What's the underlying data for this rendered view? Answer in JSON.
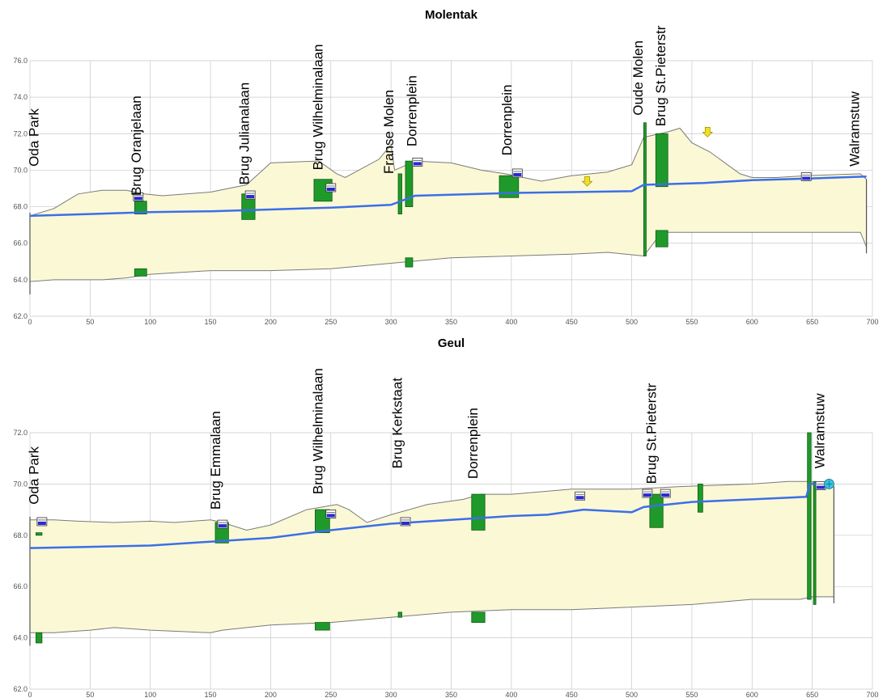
{
  "colors": {
    "fill": "#fbf8d6",
    "outline": "#7a7a7a",
    "grid": "#c8c8c8",
    "water": "#3b6fe8",
    "structure": "#1f9a2a",
    "structure_edge": "#0d5a14",
    "marker_yellow": "#f0e020",
    "culvert": "#2a2ad0"
  },
  "chart_data": [
    {
      "type": "area",
      "title": "Molentak",
      "xlim": [
        0,
        700
      ],
      "ylim": [
        62,
        76
      ],
      "x_ticks": [
        0,
        50,
        100,
        150,
        200,
        250,
        300,
        350,
        400,
        450,
        500,
        550,
        600,
        650,
        700
      ],
      "y_ticks": [
        62,
        64,
        66,
        68,
        70,
        72,
        74,
        76
      ],
      "y_tick_labels": [
        "62.0",
        "64.0",
        "66.0",
        "68.0",
        "70.0",
        "72.0",
        "74.0",
        "76.0"
      ],
      "ground_top": [
        [
          0,
          67.5
        ],
        [
          20,
          67.9
        ],
        [
          40,
          68.7
        ],
        [
          60,
          68.9
        ],
        [
          80,
          68.9
        ],
        [
          95,
          68.7
        ],
        [
          110,
          68.6
        ],
        [
          150,
          68.8
        ],
        [
          180,
          69.2
        ],
        [
          200,
          70.4
        ],
        [
          240,
          70.5
        ],
        [
          255,
          69.8
        ],
        [
          262,
          69.6
        ],
        [
          290,
          70.6
        ],
        [
          300,
          71.4
        ],
        [
          303,
          70.0
        ],
        [
          310,
          70.2
        ],
        [
          320,
          70.5
        ],
        [
          350,
          70.4
        ],
        [
          375,
          70.0
        ],
        [
          395,
          69.8
        ],
        [
          410,
          69.6
        ],
        [
          425,
          69.4
        ],
        [
          450,
          69.7
        ],
        [
          480,
          69.9
        ],
        [
          500,
          70.3
        ],
        [
          510,
          71.8
        ],
        [
          530,
          72.1
        ],
        [
          540,
          72.3
        ],
        [
          550,
          71.5
        ],
        [
          565,
          71.0
        ],
        [
          590,
          69.8
        ],
        [
          600,
          69.6
        ],
        [
          620,
          69.6
        ],
        [
          645,
          69.7
        ],
        [
          690,
          69.8
        ],
        [
          695,
          69.5
        ]
      ],
      "bed_bottom": [
        [
          0,
          63.9
        ],
        [
          20,
          64.0
        ],
        [
          40,
          64.0
        ],
        [
          60,
          64.0
        ],
        [
          80,
          64.1
        ],
        [
          100,
          64.3
        ],
        [
          150,
          64.5
        ],
        [
          200,
          64.5
        ],
        [
          250,
          64.6
        ],
        [
          300,
          64.9
        ],
        [
          350,
          65.2
        ],
        [
          400,
          65.3
        ],
        [
          450,
          65.4
        ],
        [
          480,
          65.5
        ],
        [
          510,
          65.3
        ],
        [
          525,
          66.6
        ],
        [
          545,
          66.6
        ],
        [
          600,
          66.6
        ],
        [
          650,
          66.6
        ],
        [
          690,
          66.6
        ],
        [
          695,
          65.8
        ]
      ],
      "water_level": [
        [
          0,
          67.5
        ],
        [
          50,
          67.6
        ],
        [
          100,
          67.7
        ],
        [
          150,
          67.75
        ],
        [
          200,
          67.85
        ],
        [
          250,
          67.95
        ],
        [
          300,
          68.1
        ],
        [
          320,
          68.6
        ],
        [
          400,
          68.75
        ],
        [
          450,
          68.8
        ],
        [
          500,
          68.85
        ],
        [
          510,
          69.2
        ],
        [
          560,
          69.3
        ],
        [
          600,
          69.45
        ],
        [
          650,
          69.55
        ],
        [
          695,
          69.65
        ]
      ],
      "structures": [
        {
          "x0": 87,
          "x1": 97,
          "y0": 67.6,
          "y1": 68.3
        },
        {
          "x0": 87,
          "x1": 97,
          "y0": 64.2,
          "y1": 64.6
        },
        {
          "x0": 176,
          "x1": 187,
          "y0": 67.3,
          "y1": 68.7
        },
        {
          "x0": 236,
          "x1": 251,
          "y0": 68.3,
          "y1": 69.5
        },
        {
          "x0": 306,
          "x1": 309,
          "y0": 67.6,
          "y1": 69.8
        },
        {
          "x0": 312,
          "x1": 318,
          "y0": 68.0,
          "y1": 70.5
        },
        {
          "x0": 312,
          "x1": 318,
          "y0": 64.7,
          "y1": 65.2
        },
        {
          "x0": 390,
          "x1": 406,
          "y0": 68.5,
          "y1": 69.7
        },
        {
          "x0": 510,
          "x1": 512,
          "y0": 65.3,
          "y1": 72.6
        },
        {
          "x0": 520,
          "x1": 530,
          "y0": 69.1,
          "y1": 72.0
        },
        {
          "x0": 520,
          "x1": 530,
          "y0": 65.8,
          "y1": 66.7
        }
      ],
      "culverts": [
        [
          90,
          68.5
        ],
        [
          183,
          68.6
        ],
        [
          250,
          69.0
        ],
        [
          322,
          70.4
        ],
        [
          405,
          69.8
        ],
        [
          645,
          69.6
        ]
      ],
      "yellow_markers": [
        [
          463,
          69.3
        ],
        [
          563,
          72.0
        ]
      ],
      "labels": [
        {
          "text": "Oda Park",
          "x": 7,
          "y": 70.2
        },
        {
          "text": "Brug Oranjelaan",
          "x": 92,
          "y": 68.6
        },
        {
          "text": "Brug Julianalaan",
          "x": 182,
          "y": 69.2
        },
        {
          "text": "Brug Wilhelminalaan",
          "x": 243,
          "y": 70.0
        },
        {
          "text": "Franse Molen",
          "x": 302,
          "y": 69.8
        },
        {
          "text": "Dorrenplein",
          "x": 321,
          "y": 71.3
        },
        {
          "text": "Dorrenplein",
          "x": 400,
          "y": 70.8
        },
        {
          "text": "Oude Molen",
          "x": 509,
          "y": 73.0
        },
        {
          "text": "Brug St.Pieterstr",
          "x": 528,
          "y": 72.4
        },
        {
          "text": "Walramstuw",
          "x": 689,
          "y": 70.2
        }
      ]
    },
    {
      "type": "area",
      "title": "Geul",
      "xlim": [
        0,
        700
      ],
      "ylim": [
        62,
        72
      ],
      "x_ticks": [
        0,
        50,
        100,
        150,
        200,
        250,
        300,
        350,
        400,
        450,
        500,
        550,
        600,
        650,
        700
      ],
      "y_ticks": [
        62,
        64,
        66,
        68,
        70,
        72
      ],
      "y_tick_labels": [
        "62.0",
        "64.0",
        "66.0",
        "68.0",
        "70.0",
        "72.0"
      ],
      "ground_top": [
        [
          0,
          68.6
        ],
        [
          20,
          68.6
        ],
        [
          40,
          68.55
        ],
        [
          70,
          68.5
        ],
        [
          100,
          68.55
        ],
        [
          120,
          68.5
        ],
        [
          150,
          68.6
        ],
        [
          160,
          68.5
        ],
        [
          180,
          68.2
        ],
        [
          200,
          68.4
        ],
        [
          230,
          69.0
        ],
        [
          255,
          69.2
        ],
        [
          265,
          69.0
        ],
        [
          280,
          68.5
        ],
        [
          300,
          68.8
        ],
        [
          330,
          69.2
        ],
        [
          360,
          69.4
        ],
        [
          375,
          69.6
        ],
        [
          400,
          69.6
        ],
        [
          450,
          69.8
        ],
        [
          500,
          69.8
        ],
        [
          540,
          69.9
        ],
        [
          600,
          70.0
        ],
        [
          630,
          70.1
        ],
        [
          648,
          70.1
        ],
        [
          660,
          70.0
        ],
        [
          668,
          69.9
        ]
      ],
      "bed_bottom": [
        [
          0,
          64.2
        ],
        [
          20,
          64.2
        ],
        [
          50,
          64.3
        ],
        [
          70,
          64.4
        ],
        [
          100,
          64.3
        ],
        [
          150,
          64.2
        ],
        [
          160,
          64.3
        ],
        [
          200,
          64.5
        ],
        [
          250,
          64.6
        ],
        [
          300,
          64.8
        ],
        [
          350,
          65.0
        ],
        [
          400,
          65.1
        ],
        [
          450,
          65.1
        ],
        [
          500,
          65.2
        ],
        [
          550,
          65.3
        ],
        [
          600,
          65.5
        ],
        [
          640,
          65.5
        ],
        [
          650,
          65.6
        ],
        [
          668,
          65.6
        ]
      ],
      "water_level": [
        [
          0,
          67.5
        ],
        [
          50,
          67.55
        ],
        [
          100,
          67.6
        ],
        [
          150,
          67.75
        ],
        [
          200,
          67.9
        ],
        [
          250,
          68.2
        ],
        [
          300,
          68.45
        ],
        [
          350,
          68.6
        ],
        [
          400,
          68.75
        ],
        [
          430,
          68.8
        ],
        [
          460,
          69.0
        ],
        [
          500,
          68.9
        ],
        [
          510,
          69.1
        ],
        [
          550,
          69.3
        ],
        [
          600,
          69.4
        ],
        [
          645,
          69.5
        ],
        [
          648,
          70.0
        ],
        [
          668,
          70.0
        ]
      ],
      "structures": [
        {
          "x0": 5,
          "x1": 10,
          "y0": 63.8,
          "y1": 64.2
        },
        {
          "x0": 5,
          "x1": 10,
          "y0": 68.0,
          "y1": 68.1
        },
        {
          "x0": 154,
          "x1": 165,
          "y0": 67.7,
          "y1": 68.5
        },
        {
          "x0": 237,
          "x1": 249,
          "y0": 68.1,
          "y1": 69.0
        },
        {
          "x0": 237,
          "x1": 249,
          "y0": 64.3,
          "y1": 64.6
        },
        {
          "x0": 306,
          "x1": 309,
          "y0": 64.8,
          "y1": 65.0
        },
        {
          "x0": 367,
          "x1": 378,
          "y0": 68.2,
          "y1": 69.6
        },
        {
          "x0": 367,
          "x1": 378,
          "y0": 64.6,
          "y1": 65.0
        },
        {
          "x0": 515,
          "x1": 526,
          "y0": 68.3,
          "y1": 69.6
        },
        {
          "x0": 555,
          "x1": 559,
          "y0": 68.9,
          "y1": 70.0
        },
        {
          "x0": 646,
          "x1": 649,
          "y0": 65.5,
          "y1": 72.0
        },
        {
          "x0": 651,
          "x1": 653,
          "y0": 65.3,
          "y1": 70.1
        }
      ],
      "culverts": [
        [
          10,
          68.5
        ],
        [
          160,
          68.4
        ],
        [
          250,
          68.8
        ],
        [
          312,
          68.5
        ],
        [
          457,
          69.5
        ],
        [
          513,
          69.6
        ],
        [
          528,
          69.6
        ],
        [
          657,
          69.9
        ]
      ],
      "water_pump": [
        664,
        70.0
      ],
      "labels": [
        {
          "text": "Oda Park",
          "x": 7,
          "y": 69.2
        },
        {
          "text": "Brug Emmalaan",
          "x": 158,
          "y": 69.0
        },
        {
          "text": "Brug Wilhelminalaan",
          "x": 243,
          "y": 69.6
        },
        {
          "text": "Brug Kerkstaat",
          "x": 309,
          "y": 70.6
        },
        {
          "text": "Dorrenplein",
          "x": 372,
          "y": 70.2
        },
        {
          "text": "Brug St.Pieterstr",
          "x": 520,
          "y": 70.0
        },
        {
          "text": "Walramstuw",
          "x": 660,
          "y": 70.6
        }
      ]
    }
  ]
}
